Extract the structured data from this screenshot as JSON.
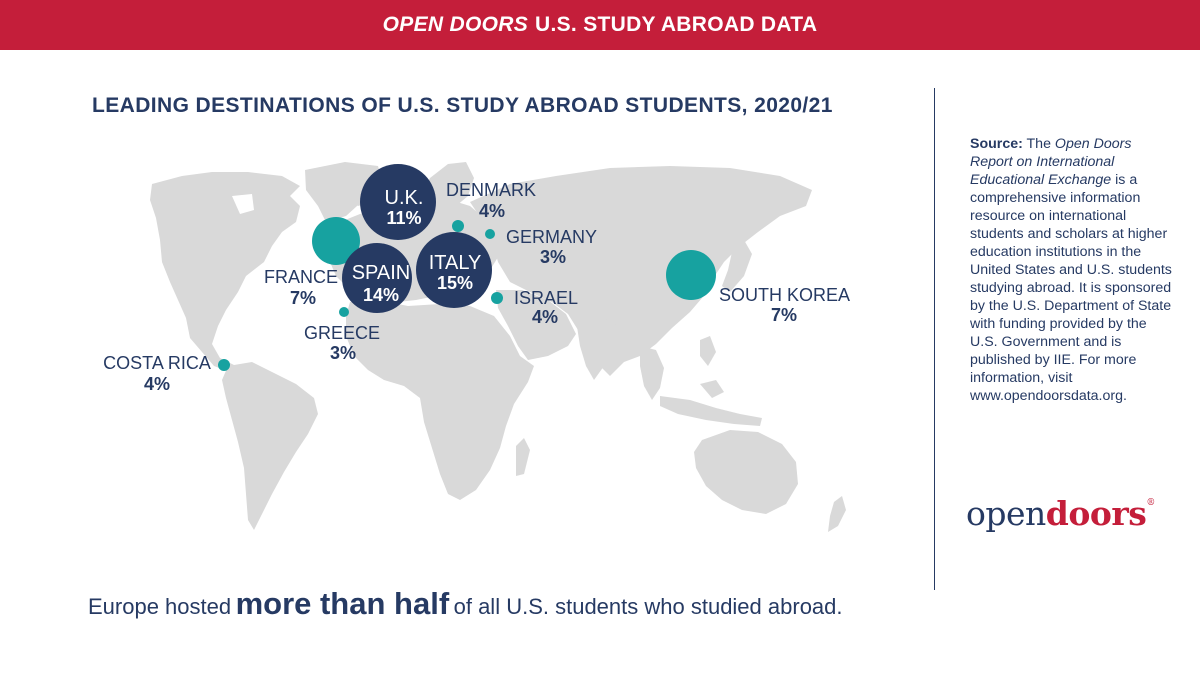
{
  "banner": {
    "italic": "OPEN DOORS",
    "rest": "U.S. STUDY ABROAD DATA"
  },
  "colors": {
    "banner_red": "#c41e3a",
    "navy": "#263a63",
    "teal": "#17a2a0",
    "map_gray": "#d9d9d9"
  },
  "chart_data": {
    "type": "bubble-map",
    "title": "LEADING DESTINATIONS OF U.S. STUDY ABROAD STUDENTS, 2020/21",
    "unit": "%",
    "points": [
      {
        "country": "U.K.",
        "value": 11,
        "label": "11%",
        "style": "navy"
      },
      {
        "country": "DENMARK",
        "value": 4,
        "label": "4%",
        "style": "teal"
      },
      {
        "country": "GERMANY",
        "value": 3,
        "label": "3%",
        "style": "teal"
      },
      {
        "country": "FRANCE",
        "value": 7,
        "label": "7%",
        "style": "teal"
      },
      {
        "country": "SPAIN",
        "value": 14,
        "label": "14%",
        "style": "navy"
      },
      {
        "country": "ITALY",
        "value": 15,
        "label": "15%",
        "style": "navy"
      },
      {
        "country": "ISRAEL",
        "value": 4,
        "label": "4%",
        "style": "teal"
      },
      {
        "country": "GREECE",
        "value": 3,
        "label": "3%",
        "style": "teal"
      },
      {
        "country": "COSTA RICA",
        "value": 4,
        "label": "4%",
        "style": "teal"
      },
      {
        "country": "SOUTH KOREA",
        "value": 7,
        "label": "7%",
        "style": "teal"
      }
    ]
  },
  "source": {
    "label": "Source:",
    "pre": "The",
    "title": "Open Doors Report on International Educational Exchange",
    "body": "is a comprehensive information resource on international students and scholars at higher education institutions in the United States and U.S. students studying abroad. It is sponsored by the U.S. Department of State with funding provided by the U.S. Government and is published by IIE. For more information, visit www.opendoorsdata.org."
  },
  "logo": {
    "part1": "open",
    "part2": "doors",
    "mark": "®"
  },
  "headline": {
    "pre": "Europe hosted",
    "emphasis": "more than half",
    "post": "of all U.S. students who studied abroad."
  }
}
